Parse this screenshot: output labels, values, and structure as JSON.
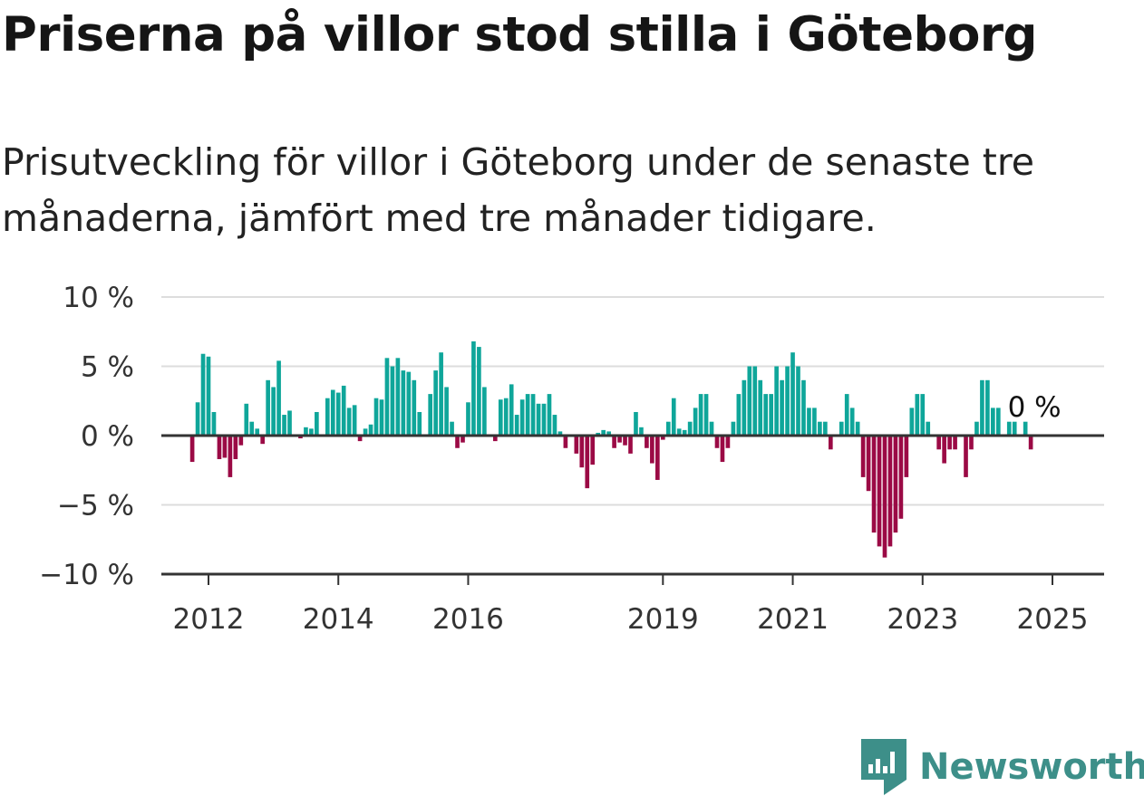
{
  "header": {
    "title": "Priserna på villor stod stilla i Göteborg",
    "subtitle": "Prisutveckling för villor i Göteborg under de senaste tre månaderna, jämfört med tre månader tidigare."
  },
  "brand": {
    "name": "Newsworthy",
    "icon": "newsworthy-logo-icon",
    "color": "#3d8f89"
  },
  "colors": {
    "positive": "#0fa69a",
    "negative": "#9b0a45",
    "grid": "#dddddd",
    "axis": "#333333"
  },
  "chart_data": {
    "type": "bar",
    "title": "Priserna på villor stod stilla i Göteborg",
    "xlabel": "",
    "ylabel": "",
    "ylim": [
      -10,
      10
    ],
    "y_ticks": [
      {
        "value": 10,
        "label": "10 %"
      },
      {
        "value": 5,
        "label": "5 %"
      },
      {
        "value": 0,
        "label": "0 %"
      },
      {
        "value": -5,
        "label": "−5 %"
      },
      {
        "value": -10,
        "label": "−10 %"
      }
    ],
    "x_ticks": [
      "2012",
      "2014",
      "2016",
      "2019",
      "2021",
      "2023",
      "2025"
    ],
    "grid": true,
    "last_value_label": "0 %",
    "series": [
      {
        "start": "2011-10",
        "frequency": "monthly",
        "unit": "%",
        "values": [
          -1.9,
          2.4,
          5.9,
          5.7,
          1.7,
          -1.7,
          -1.6,
          -3.0,
          -1.7,
          -0.7,
          2.3,
          1.0,
          0.5,
          -0.6,
          4.0,
          3.5,
          5.4,
          1.5,
          1.8,
          0.0,
          -0.2,
          0.6,
          0.5,
          1.7,
          0.0,
          2.7,
          3.3,
          3.1,
          3.6,
          2.0,
          2.2,
          -0.4,
          0.5,
          0.8,
          2.7,
          2.6,
          5.6,
          5.0,
          5.6,
          4.7,
          4.6,
          4.0,
          1.7,
          0.0,
          3.0,
          4.7,
          6.0,
          3.5,
          1.0,
          -0.9,
          -0.5,
          2.4,
          6.8,
          6.4,
          3.5,
          0.0,
          -0.4,
          2.6,
          2.7,
          3.7,
          1.5,
          2.6,
          3.0,
          3.0,
          2.3,
          2.3,
          3.0,
          1.5,
          0.3,
          -0.9,
          0.0,
          -1.3,
          -2.3,
          -3.8,
          -2.1,
          0.2,
          0.4,
          0.3,
          -0.9,
          -0.5,
          -0.7,
          -1.3,
          1.7,
          0.6,
          -0.9,
          -2.0,
          -3.2,
          -0.3,
          1.0,
          2.7,
          0.5,
          0.4,
          1.0,
          2.0,
          3.0,
          3.0,
          1.0,
          -0.9,
          -1.9,
          -0.9,
          1.0,
          3.0,
          4.0,
          5.0,
          5.0,
          4.0,
          3.0,
          3.0,
          5.0,
          4.0,
          5.0,
          6.0,
          5.0,
          4.0,
          2.0,
          2.0,
          1.0,
          1.0,
          -1.0,
          0.0,
          1.0,
          3.0,
          2.0,
          1.0,
          -3.0,
          -4.0,
          -7.0,
          -8.0,
          -8.8,
          -8.0,
          -7.0,
          -6.0,
          -3.0,
          2.0,
          3.0,
          3.0,
          1.0,
          0.0,
          -1.0,
          -2.0,
          -1.0,
          -1.0,
          0.0,
          -3.0,
          -1.0,
          1.0,
          4.0,
          4.0,
          2.0,
          2.0,
          0.0,
          1.0,
          1.0,
          0.0,
          1.0,
          -1.0,
          0.0
        ]
      }
    ]
  }
}
